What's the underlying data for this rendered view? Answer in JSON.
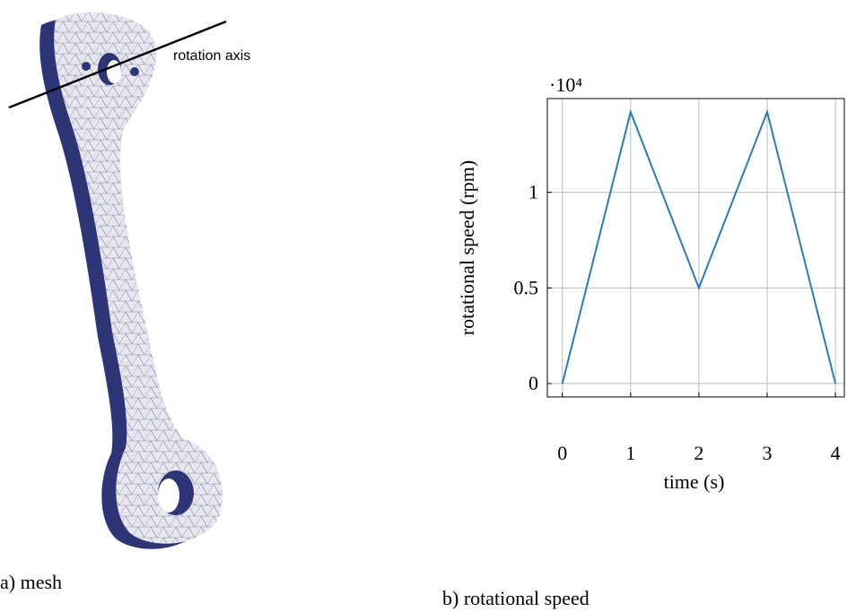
{
  "annotation": "rotation axis",
  "caption_a": "a) mesh",
  "caption_b": "b) rotational speed",
  "chart_data": {
    "type": "line",
    "x": [
      0,
      1,
      2,
      3,
      4
    ],
    "series": [
      {
        "color": "#2c7bb6",
        "values": [
          0,
          1.42,
          0.5,
          1.42,
          0
        ]
      }
    ],
    "xlabel": "time (s)",
    "ylabel": "rotational speed (rpm)",
    "y_multiplier": "·10⁴",
    "xlim": [
      -0.22,
      4.13
    ],
    "ylim": [
      -0.07,
      1.49
    ],
    "xticks": [
      0,
      1,
      2,
      3,
      4
    ],
    "yticks": [
      0,
      0.5,
      1
    ],
    "grid": true
  }
}
